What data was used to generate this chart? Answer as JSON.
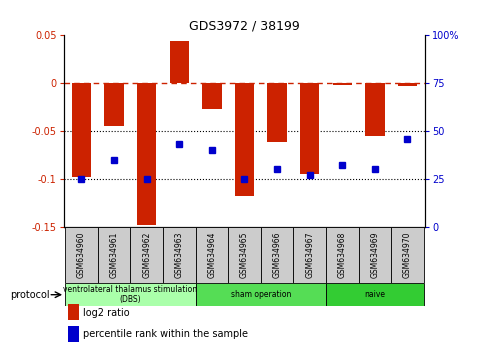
{
  "title": "GDS3972 / 38199",
  "samples": [
    "GSM634960",
    "GSM634961",
    "GSM634962",
    "GSM634963",
    "GSM634964",
    "GSM634965",
    "GSM634966",
    "GSM634967",
    "GSM634968",
    "GSM634969",
    "GSM634970"
  ],
  "log2_ratio": [
    -0.098,
    -0.045,
    -0.148,
    0.044,
    -0.027,
    -0.118,
    -0.062,
    -0.095,
    -0.002,
    -0.055,
    -0.003
  ],
  "percentile_rank": [
    25,
    35,
    25,
    43,
    40,
    25,
    30,
    27,
    32,
    30,
    46
  ],
  "groups": [
    {
      "label": "ventrolateral thalamus stimulation\n(DBS)",
      "start": 0,
      "end": 3,
      "color": "#aaffaa"
    },
    {
      "label": "sham operation",
      "start": 4,
      "end": 7,
      "color": "#55dd55"
    },
    {
      "label": "naive",
      "start": 8,
      "end": 10,
      "color": "#33cc33"
    }
  ],
  "bar_color": "#cc2200",
  "dot_color": "#0000cc",
  "ylim_left": [
    -0.15,
    0.05
  ],
  "ylim_right": [
    0,
    100
  ],
  "yticks_left": [
    -0.15,
    -0.1,
    -0.05,
    0.0,
    0.05
  ],
  "yticks_right": [
    0,
    25,
    50,
    75,
    100
  ],
  "ytick_labels_left": [
    "-0.15",
    "-0.1",
    "-0.05",
    "0",
    "0.05"
  ],
  "ytick_labels_right": [
    "0",
    "25",
    "50",
    "75",
    "100%"
  ],
  "hline0_color": "#cc2200",
  "hline0_style": "--",
  "hline_color": "black",
  "hline_style": ":",
  "left_hlines": [
    -0.05,
    -0.1
  ],
  "right_hlines": [
    50,
    25
  ]
}
